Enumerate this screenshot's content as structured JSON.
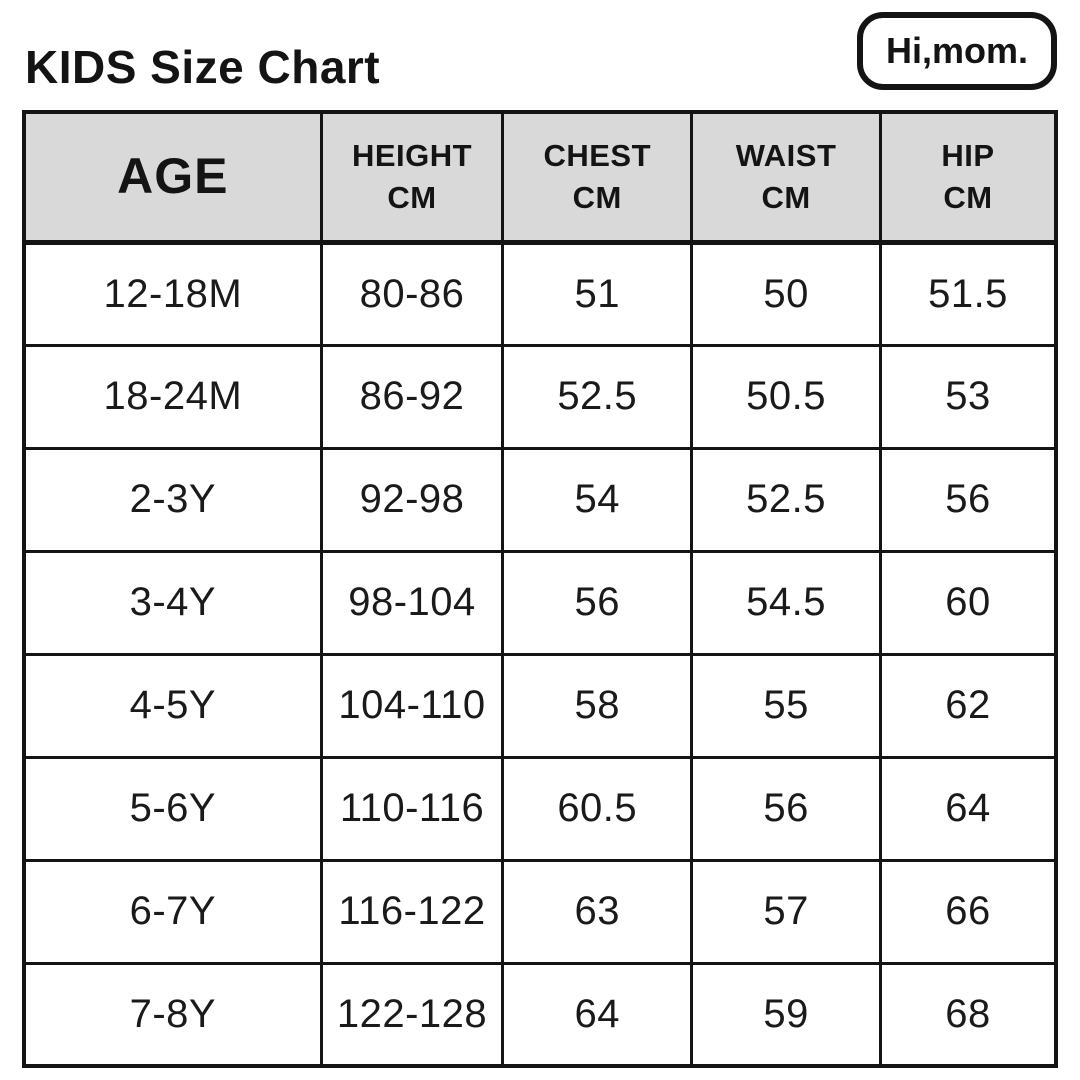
{
  "page": {
    "title": "KIDS Size Chart",
    "logo_text": "Hi,mom."
  },
  "colors": {
    "background": "#ffffff",
    "text": "#141414",
    "header_bg": "#d9d9d9",
    "border": "#141414"
  },
  "table": {
    "headers": [
      {
        "label": "AGE",
        "sub": ""
      },
      {
        "label": "HEIGHT",
        "sub": "CM"
      },
      {
        "label": "CHEST",
        "sub": "CM"
      },
      {
        "label": "WAIST",
        "sub": "CM"
      },
      {
        "label": "HIP",
        "sub": "CM"
      }
    ]
  },
  "chart_data": {
    "type": "table",
    "title": "KIDS Size Chart",
    "columns": [
      "AGE",
      "HEIGHT CM",
      "CHEST CM",
      "WAIST CM",
      "HIP CM"
    ],
    "rows": [
      [
        "12-18M",
        "80-86",
        "51",
        "50",
        "51.5"
      ],
      [
        "18-24M",
        "86-92",
        "52.5",
        "50.5",
        "53"
      ],
      [
        "2-3Y",
        "92-98",
        "54",
        "52.5",
        "56"
      ],
      [
        "3-4Y",
        "98-104",
        "56",
        "54.5",
        "60"
      ],
      [
        "4-5Y",
        "104-110",
        "58",
        "55",
        "62"
      ],
      [
        "5-6Y",
        "110-116",
        "60.5",
        "56",
        "64"
      ],
      [
        "6-7Y",
        "116-122",
        "63",
        "57",
        "66"
      ],
      [
        "7-8Y",
        "122-128",
        "64",
        "59",
        "68"
      ]
    ]
  }
}
